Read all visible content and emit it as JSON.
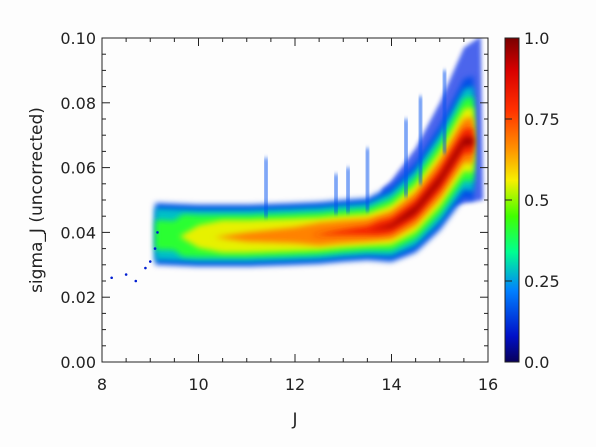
{
  "chart_data": {
    "type": "heatmap",
    "title": "",
    "xlabel": "J",
    "ylabel": "sigma_J (uncorrected)",
    "xlim": [
      8,
      16
    ],
    "ylim": [
      0.0,
      0.1
    ],
    "x_ticks": [
      "8",
      "10",
      "12",
      "14",
      "16"
    ],
    "y_ticks": [
      "0.00",
      "0.02",
      "0.04",
      "0.06",
      "0.08",
      "0.10"
    ],
    "colorbar": {
      "range": [
        0.0,
        1.0
      ],
      "scale": "nonlinear",
      "tick_labels": [
        {
          "label": "1.0",
          "value": 1.0
        },
        {
          "label": "0.75",
          "value": 0.75
        },
        {
          "label": "0.5",
          "value": 0.5
        },
        {
          "label": "0.25",
          "value": 0.25
        },
        {
          "label": "0.0",
          "value": 0.0
        }
      ]
    },
    "ridge": {
      "x": [
        9.2,
        10.0,
        11.0,
        12.0,
        12.5,
        13.0,
        13.5,
        14.0,
        14.5,
        15.0,
        15.5
      ],
      "y": [
        0.039,
        0.0385,
        0.0385,
        0.039,
        0.0393,
        0.04,
        0.0405,
        0.042,
        0.047,
        0.056,
        0.068
      ]
    },
    "density": {
      "x": [
        9.5,
        10.0,
        11.0,
        12.0,
        13.0,
        13.5,
        14.0,
        14.5,
        15.0,
        15.5
      ],
      "values": [
        0.3,
        0.45,
        0.55,
        0.6,
        0.7,
        0.75,
        0.85,
        0.95,
        1.0,
        0.9
      ]
    },
    "spikes": [
      {
        "x": 11.4,
        "y_top": 0.063
      },
      {
        "x": 12.85,
        "y_top": 0.058
      },
      {
        "x": 13.1,
        "y_top": 0.06
      },
      {
        "x": 13.5,
        "y_top": 0.066
      },
      {
        "x": 14.6,
        "y_top": 0.082
      },
      {
        "x": 14.3,
        "y_top": 0.075
      },
      {
        "x": 15.1,
        "y_top": 0.09
      }
    ]
  }
}
